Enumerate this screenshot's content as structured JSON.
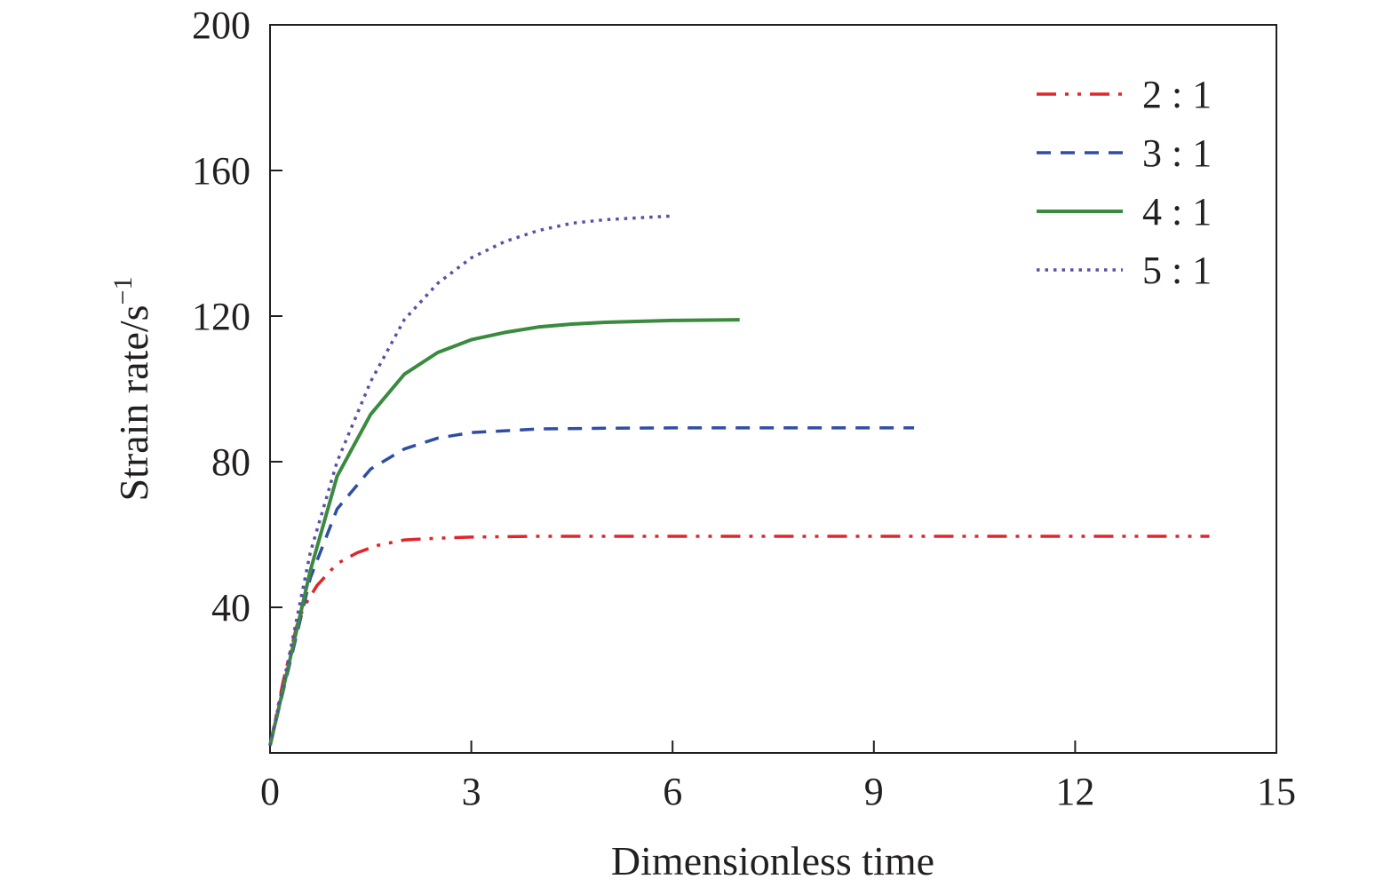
{
  "chart_data": {
    "type": "line",
    "xlabel": "Dimensionless time",
    "ylabel_main": "Strain rate/s",
    "ylabel_sup": "−1",
    "xlim": [
      0,
      15
    ],
    "ylim": [
      0,
      200
    ],
    "x_ticks": [
      0,
      3,
      6,
      9,
      12,
      15
    ],
    "y_ticks": [
      40,
      80,
      120,
      160,
      200
    ],
    "x_tick_labels": [
      "0",
      "3",
      "6",
      "9",
      "12",
      "15"
    ],
    "y_tick_labels": [
      "40",
      "80",
      "120",
      "160",
      "200"
    ],
    "grid": false,
    "legend_position": "top-right",
    "series": [
      {
        "name": "2 : 1",
        "color": "#e0252b",
        "style": "dash-dot-dot",
        "x": [
          0,
          0.2,
          0.4,
          0.5,
          0.7,
          1.0,
          1.3,
          1.6,
          2.0,
          2.5,
          3.0,
          4.0,
          6.0,
          8.0,
          10.0,
          12.0,
          14.0
        ],
        "y": [
          2,
          20,
          35,
          40,
          46,
          52,
          55,
          57,
          58.5,
          59,
          59.3,
          59.5,
          59.5,
          59.5,
          59.5,
          59.5,
          59.5
        ]
      },
      {
        "name": "3 : 1",
        "color": "#2f4ea3",
        "style": "dashed",
        "x": [
          0,
          0.3,
          0.6,
          1.0,
          1.5,
          2.0,
          2.5,
          3.0,
          4.0,
          5.0,
          6.0,
          7.0,
          8.0,
          9.6
        ],
        "y": [
          2,
          25,
          48,
          67,
          78,
          83.5,
          86.5,
          88,
          89,
          89.2,
          89.3,
          89.3,
          89.3,
          89.3
        ]
      },
      {
        "name": "4 : 1",
        "color": "#3a8a3f",
        "style": "solid",
        "x": [
          0,
          0.3,
          0.6,
          1.0,
          1.5,
          2.0,
          2.5,
          3.0,
          3.5,
          4.0,
          4.5,
          5.0,
          6.0,
          7.0
        ],
        "y": [
          2,
          26,
          50,
          76,
          93,
          104,
          110,
          113.5,
          115.5,
          117,
          117.8,
          118.3,
          118.8,
          119
        ]
      },
      {
        "name": "5 : 1",
        "color": "#5a4fa8",
        "style": "dotted",
        "x": [
          0,
          0.3,
          0.6,
          1.0,
          1.5,
          2.0,
          2.5,
          3.0,
          3.5,
          4.0,
          4.5,
          5.0,
          5.5,
          6.0
        ],
        "y": [
          2,
          28,
          55,
          80,
          102,
          119,
          129,
          136,
          140.5,
          143.5,
          145.5,
          146.5,
          147,
          147.5
        ]
      }
    ]
  }
}
